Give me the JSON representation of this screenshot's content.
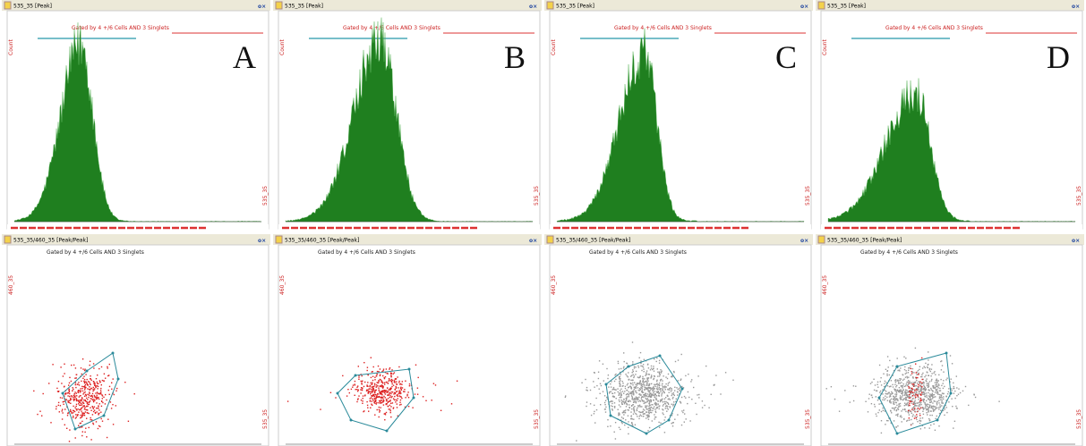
{
  "panels": [
    {
      "letter": "A",
      "histogram": {
        "title": "535_35 [Peak]",
        "gate": "Gated by 4 +/6 Cells AND 3 Singlets",
        "y_label": "Count",
        "x_label": "535_35"
      },
      "scatter": {
        "title": "535_35/460_35 [Peak/Peak]",
        "gate": "Gated by 4 +/6 Cells AND 3 Singlets",
        "y_label": "460_35",
        "x_label": "535_35"
      }
    },
    {
      "letter": "B",
      "histogram": {
        "title": "535_35 [Peak]",
        "gate": "Gated by 4 +/6 Cells AND 3 Singlets",
        "y_label": "Count",
        "x_label": "535_35"
      },
      "scatter": {
        "title": "535_35/460_35 [Peak/Peak]",
        "gate": "Gated by 4 +/6 Cells AND 3 Singlets",
        "y_label": "460_35",
        "x_label": "535_35"
      }
    },
    {
      "letter": "C",
      "histogram": {
        "title": "535_35 [Peak]",
        "gate": "Gated by 4 +/6 Cells AND 3 Singlets",
        "y_label": "Count",
        "x_label": "535_35"
      },
      "scatter": {
        "title": "535_35/460_35 [Peak/Peak]",
        "gate": "Gated by 4 +/6 Cells AND 3 Singlets",
        "y_label": "460_35",
        "x_label": "535_35"
      }
    },
    {
      "letter": "D",
      "histogram": {
        "title": "535_35 [Peak]",
        "gate": "Gated by 4 +/6 Cells AND 3 Singlets",
        "y_label": "Count",
        "x_label": "535_35"
      },
      "scatter": {
        "title": "535_35/460_35 [Peak/Peak]",
        "gate": "Gated by 4 +/6 Cells AND 3 Singlets",
        "y_label": "460_35",
        "x_label": "535_35"
      }
    }
  ]
}
